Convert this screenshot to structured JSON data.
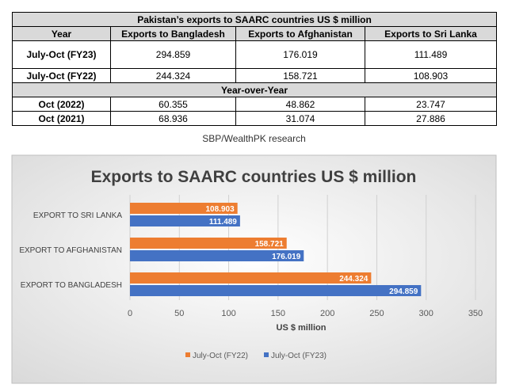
{
  "table": {
    "title": "Pakistan’s exports to SAARC countries US $ million",
    "headers": [
      "Year",
      "Exports to Bangladesh",
      "Exports to Afghanistan",
      "Exports to Sri Lanka"
    ],
    "rows": [
      [
        "July-Oct (FY23)",
        "294.859",
        "176.019",
        "111.489"
      ],
      [
        "July-Oct (FY22)",
        "244.324",
        "158.721",
        "108.903"
      ]
    ],
    "section_label": "Year-over-Year",
    "rows2": [
      [
        "Oct (2022)",
        "60.355",
        "48.862",
        "23.747"
      ],
      [
        "Oct (2021)",
        "68.936",
        "31.074",
        "27.886"
      ]
    ]
  },
  "source": "SBP/WealthPK research",
  "chart_data": {
    "type": "bar",
    "orientation": "horizontal",
    "title": "Exports to SAARC countries US $ million",
    "xlabel": "US $ million",
    "ylabel": "",
    "categories": [
      "EXPORT TO SRI LANKA",
      "EXPORT TO AFGHANISTAN",
      "EXPORT TO BANGLADESH"
    ],
    "series": [
      {
        "name": "July-Oct (FY22)",
        "values": [
          108.903,
          158.721,
          244.324
        ],
        "color": "#ed7d31"
      },
      {
        "name": "July-Oct (FY23)",
        "values": [
          111.489,
          176.019,
          294.859
        ],
        "color": "#4472c4"
      }
    ],
    "xlim": [
      0,
      350
    ],
    "xticks": [
      0,
      50,
      100,
      150,
      200,
      250,
      300,
      350
    ],
    "grid": true,
    "legend": "bottom",
    "data_labels": true
  }
}
